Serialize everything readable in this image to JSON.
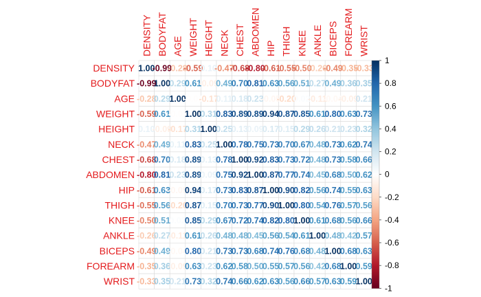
{
  "chart_data": {
    "type": "heatmap",
    "title": "",
    "variables": [
      "DENSITY",
      "BODYFAT",
      "AGE",
      "WEIGHT",
      "HEIGHT",
      "NECK",
      "CHEST",
      "ABDOMEN",
      "HIP",
      "THIGH",
      "KNEE",
      "ANKLE",
      "BICEPS",
      "FOREARM",
      "WRIST"
    ],
    "matrix": [
      [
        1.0,
        -0.99,
        -0.28,
        -0.59,
        0.1,
        -0.47,
        -0.68,
        -0.8,
        -0.61,
        -0.55,
        -0.5,
        -0.26,
        -0.49,
        -0.35,
        -0.33
      ],
      [
        -0.99,
        1.0,
        0.29,
        0.61,
        -0.09,
        0.49,
        0.7,
        0.81,
        0.63,
        0.56,
        0.51,
        0.27,
        0.49,
        0.36,
        0.35
      ],
      [
        -0.28,
        0.29,
        1.0,
        -0.01,
        -0.17,
        0.11,
        0.18,
        0.23,
        -0.05,
        -0.2,
        0.02,
        -0.11,
        -0.04,
        -0.09,
        0.21
      ],
      [
        -0.59,
        0.61,
        -0.01,
        1.0,
        0.31,
        0.83,
        0.89,
        0.89,
        0.94,
        0.87,
        0.85,
        0.61,
        0.8,
        0.63,
        0.73
      ],
      [
        0.1,
        -0.09,
        -0.17,
        0.31,
        1.0,
        0.25,
        0.13,
        0.09,
        0.17,
        0.15,
        0.29,
        0.26,
        0.21,
        0.23,
        0.32
      ],
      [
        -0.47,
        0.49,
        0.11,
        0.83,
        0.25,
        1.0,
        0.78,
        0.75,
        0.73,
        0.7,
        0.67,
        0.48,
        0.73,
        0.62,
        0.74
      ],
      [
        -0.68,
        0.7,
        0.18,
        0.89,
        0.13,
        0.78,
        1.0,
        0.92,
        0.83,
        0.73,
        0.72,
        0.48,
        0.73,
        0.58,
        0.66
      ],
      [
        -0.8,
        0.81,
        0.23,
        0.89,
        0.09,
        0.75,
        0.92,
        1.0,
        0.87,
        0.77,
        0.74,
        0.45,
        0.68,
        0.5,
        0.62
      ],
      [
        -0.61,
        0.63,
        -0.05,
        0.94,
        0.17,
        0.73,
        0.83,
        0.87,
        1.0,
        0.9,
        0.82,
        0.56,
        0.74,
        0.55,
        0.63
      ],
      [
        -0.55,
        0.56,
        -0.2,
        0.87,
        0.15,
        0.7,
        0.73,
        0.77,
        0.9,
        1.0,
        0.8,
        0.54,
        0.76,
        0.57,
        0.56
      ],
      [
        -0.5,
        0.51,
        0.02,
        0.85,
        0.29,
        0.67,
        0.72,
        0.74,
        0.82,
        0.8,
        1.0,
        0.61,
        0.68,
        0.56,
        0.66
      ],
      [
        -0.26,
        0.27,
        -0.11,
        0.61,
        0.26,
        0.48,
        0.48,
        0.45,
        0.56,
        0.54,
        0.61,
        1.0,
        0.48,
        0.42,
        0.57
      ],
      [
        -0.49,
        0.49,
        -0.04,
        0.8,
        0.21,
        0.73,
        0.73,
        0.68,
        0.74,
        0.76,
        0.68,
        0.48,
        1.0,
        0.68,
        0.63
      ],
      [
        -0.35,
        0.36,
        -0.09,
        0.63,
        0.23,
        0.62,
        0.58,
        0.5,
        0.55,
        0.57,
        0.56,
        0.42,
        0.68,
        1.0,
        0.59
      ],
      [
        -0.33,
        0.35,
        0.21,
        0.73,
        0.32,
        0.74,
        0.66,
        0.62,
        0.63,
        0.56,
        0.66,
        0.57,
        0.63,
        0.59,
        1.0
      ]
    ],
    "colorbar_ticks": [
      "-1",
      "-0.8",
      "-0.6",
      "-0.4",
      "-0.2",
      "0",
      "0.2",
      "0.4",
      "0.6",
      "0.8",
      "1"
    ],
    "range": [
      -1,
      1
    ],
    "colors": {
      "label": "#e31a1c",
      "strong_negative": "#67001f",
      "neutral": "#ffffff",
      "strong_positive": "#053061",
      "grid": "#d9d9d9"
    }
  }
}
